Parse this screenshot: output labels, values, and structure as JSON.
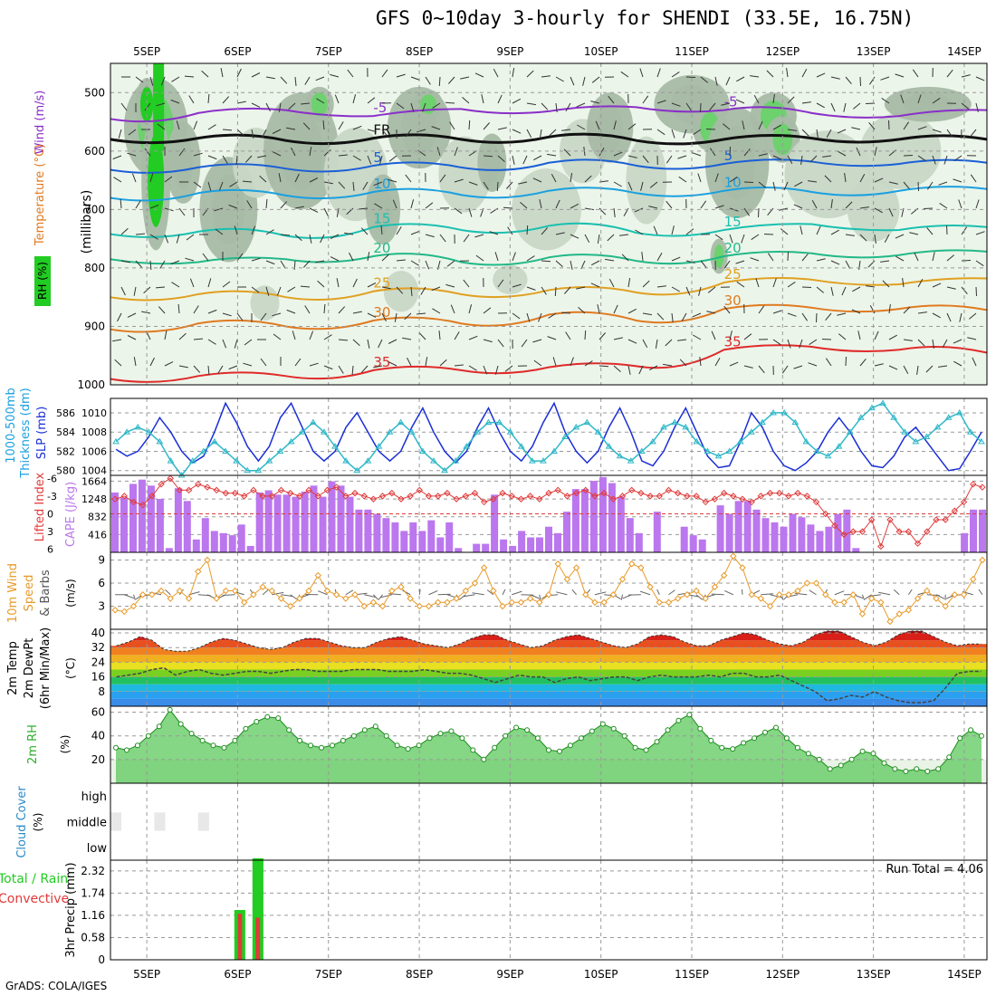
{
  "header": {
    "title": "GFS 0~10day 3-hourly for SHENDI (33.5E, 16.75N)",
    "credit": "GrADS: COLA/IGES"
  },
  "colors": {
    "frame": "#000000",
    "grid": "#999999",
    "rh_fill": [
      "#ecf5ea",
      "#c8d7c6",
      "#a8bba6",
      "#6dd16d",
      "#22cc22"
    ],
    "slp": "#1a2fd6",
    "thickness": "#2fb8c8",
    "lifted_index": "#e03a3a",
    "cape": "#bb77ee",
    "wind_speed": "#e89a2a",
    "rh2m": "#2bb02b",
    "cloud": "#6aaad6",
    "precip_total": "#22cc22",
    "precip_conv": "#e03a3a"
  },
  "chart_data": [
    {
      "id": "upper-air",
      "type": "heatmap",
      "ylabel": "(millibars)",
      "side_labels": [
        "Wind (m/s)",
        "Temperature (°C)",
        "RH (%)"
      ],
      "x_ticks": [
        "5SEP",
        "6SEP",
        "7SEP",
        "8SEP",
        "9SEP",
        "10SEP",
        "11SEP",
        "12SEP",
        "13SEP",
        "14SEP"
      ],
      "y_ticks": [
        500,
        600,
        700,
        800,
        900,
        1000
      ],
      "ylim": [
        1000,
        450
      ],
      "freezing_label": "FR",
      "isotherms": [
        {
          "label": "-5",
          "color": "#8a2fc8",
          "level_mb": [
            545,
            535,
            530,
            540,
            528,
            532,
            525,
            530,
            535,
            540,
            530
          ]
        },
        {
          "label": "FR",
          "color": "#111111",
          "level_mb": [
            580,
            578,
            582,
            578,
            580,
            576,
            582,
            580,
            578,
            580,
            580
          ]
        },
        {
          "label": "5",
          "color": "#1a5fd6",
          "level_mb": [
            632,
            628,
            630,
            625,
            628,
            620,
            625,
            622,
            618,
            622,
            620
          ]
        },
        {
          "label": "10",
          "color": "#1aa0e0",
          "level_mb": [
            680,
            672,
            676,
            670,
            675,
            668,
            672,
            668,
            670,
            668,
            665
          ]
        },
        {
          "label": "15",
          "color": "#1ac0b0",
          "level_mb": [
            742,
            738,
            745,
            730,
            735,
            728,
            740,
            735,
            725,
            735,
            730
          ]
        },
        {
          "label": "20",
          "color": "#22b888",
          "level_mb": [
            785,
            790,
            785,
            780,
            790,
            782,
            788,
            780,
            775,
            778,
            772
          ]
        },
        {
          "label": "25",
          "color": "#e0a020",
          "level_mb": [
            850,
            845,
            850,
            840,
            845,
            838,
            842,
            825,
            820,
            828,
            818
          ]
        },
        {
          "label": "30",
          "color": "#e07a20",
          "level_mb": [
            905,
            895,
            900,
            890,
            895,
            880,
            890,
            870,
            868,
            870,
            872
          ]
        },
        {
          "label": "35",
          "color": "#e02a2a",
          "level_mb": [
            990,
            985,
            985,
            975,
            975,
            970,
            968,
            940,
            935,
            940,
            945
          ]
        }
      ]
    },
    {
      "id": "slp-thickness",
      "type": "line",
      "left_labels": [
        "1000-500mb",
        "Thickness (dm)",
        "SLP (mb)"
      ],
      "thickness_ticks": [
        580,
        582,
        584,
        586
      ],
      "slp_ticks": [
        1004,
        1006,
        1008,
        1010
      ],
      "series": [
        {
          "name": "SLP",
          "axis": "slp",
          "values": [
            1006.2,
            1005.5,
            1006,
            1007.5,
            1009.5,
            1008,
            1006,
            1004.8,
            1005.5,
            1008,
            1011,
            1009,
            1006.5,
            1005,
            1006.5,
            1009.5,
            1011,
            1008.5,
            1006,
            1005,
            1006,
            1008.5,
            1010,
            1008,
            1006,
            1005,
            1006,
            1008.5,
            1010.5,
            1008,
            1006,
            1004.8,
            1006,
            1008.5,
            1010.5,
            1008,
            1006,
            1005,
            1006.5,
            1009,
            1011,
            1008,
            1006,
            1004.8,
            1006,
            1008.5,
            1010.5,
            1008,
            1005,
            1004.5,
            1006,
            1008.5,
            1010.5,
            1008,
            1005.5,
            1004.3,
            1004.5,
            1007,
            1010,
            1008.5,
            1006,
            1004.5,
            1004,
            1004.8,
            1006,
            1008,
            1009.5,
            1008,
            1006,
            1004.5,
            1004.3,
            1005.5,
            1007.5,
            1008.5,
            1007,
            1005.5,
            1004,
            1004.2,
            1006,
            1008
          ]
        },
        {
          "name": "1000-500mb Thickness",
          "axis": "thickness",
          "values": [
            583,
            584,
            584.5,
            584,
            583,
            581,
            579.5,
            581,
            582,
            583,
            582,
            581,
            580,
            580,
            581,
            582,
            583,
            584,
            585,
            584,
            582.5,
            581,
            580,
            581,
            582.5,
            584,
            585,
            584,
            582,
            581,
            580,
            581,
            582.5,
            584,
            585,
            585,
            584,
            582.5,
            581,
            581,
            582,
            583.5,
            584.5,
            585,
            584,
            582.5,
            581.5,
            581,
            582,
            583,
            584.5,
            585,
            584.5,
            583,
            582,
            581.5,
            582,
            583,
            584,
            585,
            586,
            586,
            585,
            583,
            582,
            581.5,
            582.5,
            584,
            585.5,
            586.5,
            587,
            585.5,
            584,
            583,
            583.5,
            584.5,
            585.5,
            586,
            584,
            583
          ]
        }
      ]
    },
    {
      "id": "cape-li",
      "type": "bar",
      "left_labels": [
        "Lifted Index",
        "CAPE (J/kg)"
      ],
      "li_ticks": [
        "-6",
        "-3",
        "0",
        "3",
        "6"
      ],
      "cape_ticks": [
        "416",
        "832",
        "1248",
        "1664"
      ],
      "cape_values": [
        1400,
        1280,
        1600,
        1700,
        1560,
        1250,
        100,
        1500,
        1200,
        300,
        800,
        500,
        450,
        400,
        650,
        150,
        1400,
        1450,
        1350,
        1350,
        1300,
        1420,
        1560,
        1300,
        1660,
        1560,
        1300,
        1000,
        1000,
        900,
        800,
        700,
        500,
        700,
        500,
        750,
        350,
        700,
        100,
        0,
        200,
        200,
        1350,
        300,
        150,
        500,
        350,
        350,
        600,
        450,
        950,
        1480,
        1480,
        1670,
        1760,
        1620,
        1300,
        800,
        450,
        0,
        950,
        0,
        0,
        600,
        400,
        300,
        0,
        1100,
        900,
        1200,
        1200,
        1000,
        800,
        700,
        600,
        900,
        820,
        650,
        500,
        600,
        900,
        1000,
        100,
        0,
        0,
        0,
        0,
        0,
        0,
        0,
        0,
        0,
        0,
        0,
        450,
        1000,
        1000
      ],
      "li_values": [
        -2.5,
        -3,
        -2,
        -1.5,
        -3,
        -5,
        -6,
        -4,
        -4,
        -5,
        -4.5,
        -4,
        -3.5,
        -3.5,
        -3,
        -4,
        -3,
        -3,
        -4,
        -3.5,
        -3,
        -4,
        -3,
        -4,
        -4.5,
        -3,
        -3.5,
        -3,
        -2.5,
        -3,
        -3.5,
        -2.5,
        -3,
        -4,
        -3,
        -3,
        -3.5,
        -2.5,
        -3,
        -3.5,
        -2,
        -2.5,
        -3.5,
        -3,
        -2.5,
        -3,
        -2.5,
        -3.5,
        -4,
        -3,
        -3.5,
        -4,
        -3,
        -3.5,
        -2.5,
        -3,
        -4,
        -3.5,
        -3,
        -3,
        -4,
        -3.5,
        -3,
        -3,
        -2,
        -2.5,
        -3.5,
        -3,
        -2.5,
        -2,
        -3,
        -3.5,
        -3.5,
        -3,
        -3.5,
        -3,
        -2,
        0,
        2,
        3.5,
        3,
        3,
        1,
        5.5,
        1,
        3,
        3,
        5,
        3,
        1,
        1,
        -0.5,
        -2,
        -5,
        -4.5
      ]
    },
    {
      "id": "wind10m",
      "type": "line",
      "left_labels": [
        "10m Wind",
        "Speed",
        "& Barbs"
      ],
      "ylabel": "(m/s)",
      "y_ticks": [
        3,
        6,
        9
      ],
      "ylim": [
        0,
        10
      ],
      "values": [
        2.5,
        2.3,
        3,
        4.5,
        4.5,
        5,
        4,
        5,
        4,
        7.5,
        9,
        4,
        5,
        5,
        3.5,
        4.5,
        5.5,
        5,
        4,
        3,
        4,
        5,
        7,
        5,
        4.5,
        4,
        4.5,
        3,
        3.5,
        3,
        5,
        5.5,
        4,
        3,
        3,
        3.5,
        3.5,
        4,
        5,
        6,
        8,
        5,
        3,
        3.5,
        3.5,
        4,
        3.5,
        4.5,
        8.5,
        6.5,
        8,
        4.5,
        3.5,
        3.5,
        4.5,
        6.5,
        8.5,
        8,
        5.5,
        3.5,
        3.5,
        4,
        4.5,
        5,
        4,
        5.5,
        7,
        9.5,
        8,
        4.5,
        4,
        3,
        4.5,
        4.5,
        5,
        6,
        6,
        4.5,
        3.5,
        3.5,
        4.5,
        2,
        4,
        3.5,
        1,
        2,
        2.5,
        4,
        5,
        4,
        3,
        4.5,
        4.5,
        6.5,
        9
      ]
    },
    {
      "id": "temp2m",
      "type": "area",
      "left_labels": [
        "2m Temp",
        "2m DewPt",
        "(6hr Min/Max)"
      ],
      "ylabel": "(°C)",
      "y_ticks": [
        8,
        16,
        24,
        32,
        40
      ],
      "ylim": [
        0,
        42
      ],
      "temp_values": [
        33,
        35,
        38,
        36,
        31,
        30,
        30,
        32,
        35,
        37,
        36,
        34,
        32,
        31,
        32,
        35,
        37,
        37,
        35,
        33,
        32,
        32,
        35,
        37,
        38,
        36,
        34,
        33,
        32,
        34,
        37,
        39,
        39,
        36,
        34,
        32,
        33,
        36,
        38,
        39,
        37,
        35,
        33,
        32,
        34,
        38,
        39,
        38,
        35,
        33,
        33,
        36,
        38,
        40,
        39,
        36,
        34,
        33,
        35,
        39,
        41,
        41,
        38,
        35,
        33,
        35,
        39,
        41,
        41,
        38,
        35,
        33,
        34,
        34
      ],
      "dewpoint_values": [
        16,
        17,
        18,
        20,
        21,
        17,
        19,
        20,
        18,
        17,
        18,
        19,
        19,
        18,
        19,
        20,
        20,
        19,
        19,
        19,
        20,
        20,
        20,
        19,
        19,
        19,
        20,
        19,
        18,
        18,
        17,
        15,
        13,
        15,
        17,
        16,
        16,
        13,
        15,
        16,
        14,
        15,
        16,
        16,
        14,
        16,
        17,
        16,
        16,
        16,
        17,
        16,
        18,
        18,
        16,
        16,
        17,
        14,
        11,
        8,
        3,
        4,
        6,
        5,
        8,
        5,
        3,
        2,
        2,
        3,
        10,
        18,
        19,
        19
      ]
    },
    {
      "id": "rh2m",
      "type": "area",
      "left_labels": [
        "2m RH"
      ],
      "ylabel": "(%)",
      "y_ticks": [
        20,
        40,
        60
      ],
      "ylim": [
        0,
        65
      ],
      "values": [
        30,
        28,
        32,
        40,
        48,
        62,
        50,
        42,
        36,
        32,
        30,
        36,
        46,
        52,
        56,
        55,
        45,
        36,
        32,
        30,
        32,
        36,
        40,
        45,
        48,
        40,
        32,
        29,
        32,
        38,
        42,
        44,
        38,
        28,
        20,
        30,
        40,
        47,
        45,
        38,
        28,
        27,
        32,
        38,
        44,
        50,
        46,
        40,
        30,
        28,
        35,
        45,
        53,
        58,
        46,
        36,
        30,
        29,
        34,
        38,
        43,
        47,
        38,
        30,
        25,
        20,
        12,
        15,
        20,
        27,
        25,
        17,
        12,
        10,
        12,
        10,
        12,
        22,
        38,
        45,
        40
      ]
    },
    {
      "id": "cloud",
      "type": "heatmap",
      "left_labels": [
        "Cloud Cover"
      ],
      "ylabel": "(%)",
      "rows": [
        "high",
        "middle",
        "low"
      ]
    },
    {
      "id": "precip",
      "type": "bar",
      "left_labels": [
        "Total / Rain",
        "Convective"
      ],
      "ylabel": "3hr Precip (mm)",
      "y_ticks": [
        "0",
        "0.58",
        "1.16",
        "1.74",
        "2.32"
      ],
      "ylim": [
        0,
        2.6
      ],
      "run_total": "Run Total = 4.06",
      "bars": [
        {
          "slot": 4,
          "total": 1.3,
          "convective": 1.2
        },
        {
          "slot": 5,
          "total": 2.65,
          "convective": 1.1
        }
      ]
    }
  ]
}
